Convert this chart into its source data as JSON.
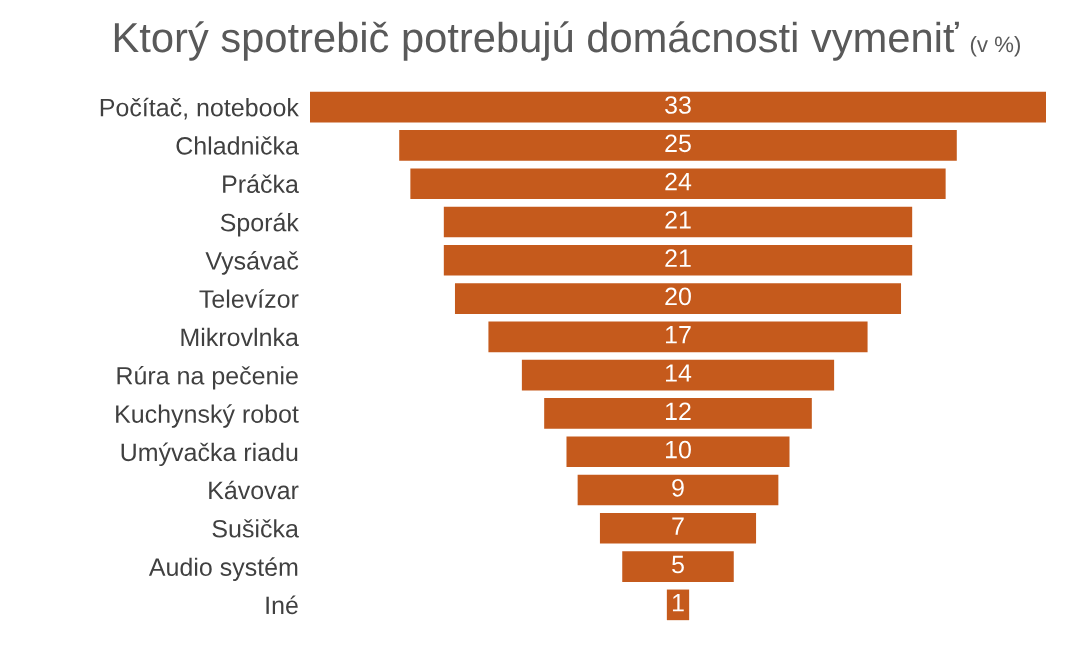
{
  "chart_data": {
    "type": "other",
    "title": "Ktorý spotrebič potrebujú domácnosti vymeniť",
    "subtitle": "(v %)",
    "categories": [
      "Počítač, notebook",
      "Chladnička",
      "Práčka",
      "Sporák",
      "Vysávač",
      "Televízor",
      "Mikrovlnka",
      "Rúra na pečenie",
      "Kuchynský robot",
      "Umývačka riadu",
      "Kávovar",
      "Sušička",
      "Audio systém",
      "Iné"
    ],
    "values": [
      33,
      25,
      24,
      21,
      21,
      20,
      17,
      14,
      12,
      10,
      9,
      7,
      5,
      1
    ],
    "color": "#c55a1c",
    "data_labels": true
  }
}
